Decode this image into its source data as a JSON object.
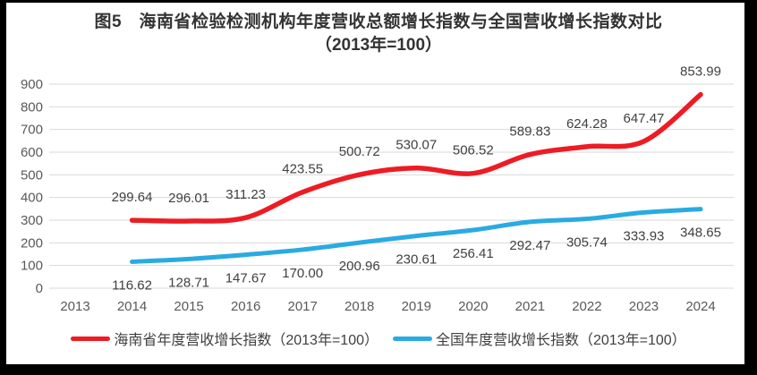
{
  "figure": {
    "title_line1": "图5　海南省检验检测机构年度营收总额增长指数与全国营收增长指数对比",
    "title_line2": "（2013年=100）"
  },
  "colors": {
    "hainan_line": "#ed1c24",
    "national_line": "#29abe2",
    "gridline": "#d9d9d9",
    "axis_text": "#595959",
    "data_label_text": "#404040",
    "frame": "#000000"
  },
  "chart_data": {
    "type": "line",
    "title": "图5　海南省检验检测机构年度营收总额增长指数与全国营收增长指数对比（2013年=100）",
    "categories": [
      "2013",
      "2014",
      "2015",
      "2016",
      "2017",
      "2018",
      "2019",
      "2020",
      "2021",
      "2022",
      "2023",
      "2024"
    ],
    "series": [
      {
        "id": "hainan",
        "name": "海南省年度营收增长指数（2013年=100）",
        "color": "#ed1c24",
        "start_index": 1,
        "label_position": "above",
        "line_width": 5.5,
        "values": [
          299.64,
          296.01,
          311.23,
          423.55,
          500.72,
          530.07,
          506.52,
          589.83,
          624.28,
          647.47,
          853.99
        ]
      },
      {
        "id": "national",
        "name": "全国年度营收增长指数（2013年=100）",
        "color": "#29abe2",
        "start_index": 1,
        "label_position": "below",
        "line_width": 5,
        "values": [
          116.62,
          128.71,
          147.67,
          170.0,
          200.96,
          230.61,
          256.41,
          292.47,
          305.74,
          333.93,
          348.65
        ]
      }
    ],
    "ylim": [
      0,
      900
    ],
    "ytick_step": 100,
    "yticks": [
      0,
      100,
      200,
      300,
      400,
      500,
      600,
      700,
      800,
      900
    ],
    "grid": true,
    "smooth_lines": true,
    "data_label_decimals": 2,
    "legend_position": "bottom"
  },
  "legend": {
    "items": [
      {
        "label": "海南省年度营收增长指数（2013年=100）"
      },
      {
        "label": "全国年度营收增长指数（2013年=100）"
      }
    ]
  }
}
